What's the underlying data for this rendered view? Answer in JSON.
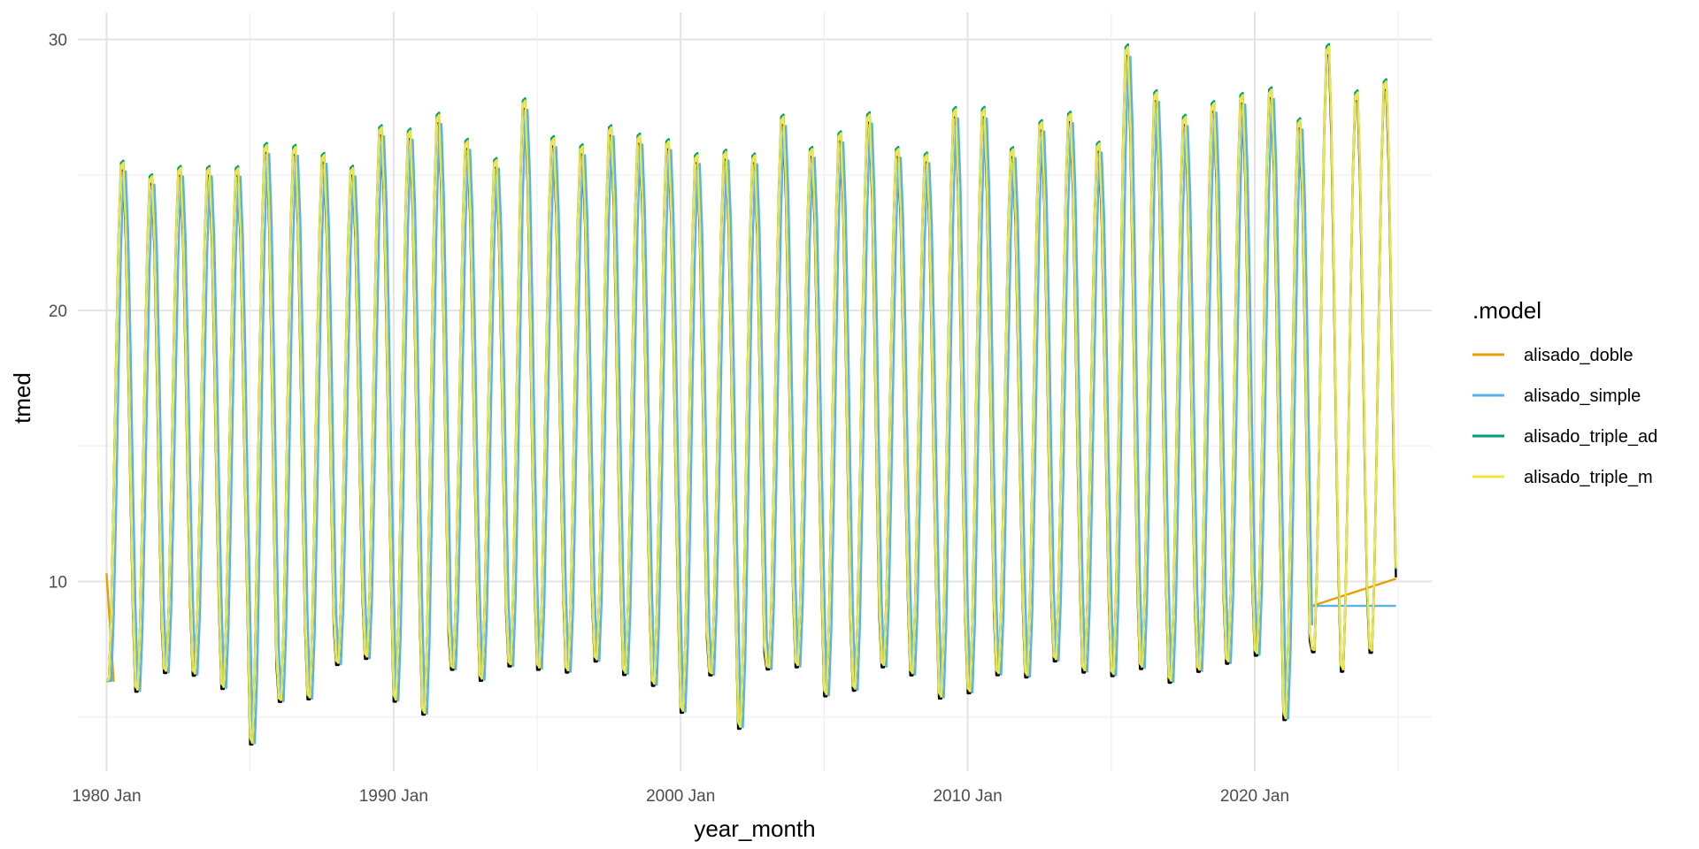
{
  "chart_data": {
    "type": "line",
    "title": "",
    "xlabel": "year_month",
    "ylabel": "tmed",
    "x_range": [
      "1979-01",
      "2026-03"
    ],
    "ylim": [
      3,
      31
    ],
    "x_ticks": [
      {
        "label": "1980 Jan",
        "value": "1980-01"
      },
      {
        "label": "1990 Jan",
        "value": "1990-01"
      },
      {
        "label": "2000 Jan",
        "value": "2000-01"
      },
      {
        "label": "2010 Jan",
        "value": "2010-01"
      },
      {
        "label": "2020 Jan",
        "value": "2020-01"
      }
    ],
    "y_ticks": [
      {
        "label": "10",
        "value": 10
      },
      {
        "label": "20",
        "value": 20
      },
      {
        "label": "30",
        "value": 30
      }
    ],
    "y_minor_ticks": [
      5,
      15,
      25
    ],
    "grid": true,
    "legend": {
      "title": ".model",
      "position": "right",
      "entries": [
        {
          "label": "alisado_doble",
          "color": "#E69F00"
        },
        {
          "label": "alisado_simple",
          "color": "#56B4E9"
        },
        {
          "label": "alisado_triple_ad",
          "color": "#009E73"
        },
        {
          "label": "alisado_triple_m",
          "color": "#F0E442"
        }
      ]
    },
    "observed": {
      "color": "#000000",
      "start": "1980-01",
      "end": "2024-12",
      "winter_lows": [
        6.0,
        5.6,
        6.3,
        6.2,
        5.7,
        3.6,
        5.2,
        5.3,
        6.6,
        6.8,
        5.2,
        4.7,
        6.4,
        6.0,
        6.5,
        6.4,
        6.3,
        6.7,
        6.2,
        5.8,
        4.8,
        6.2,
        4.2,
        6.4,
        6.5,
        5.4,
        5.6,
        6.5,
        6.2,
        5.3,
        5.5,
        6.2,
        6.1,
        6.7,
        6.3,
        6.1,
        6.4,
        5.9,
        6.3,
        6.6,
        6.9,
        4.5,
        7.0,
        6.3,
        7.0
      ],
      "summer_highs": [
        25.5,
        25.0,
        25.3,
        25.3,
        25.3,
        26.2,
        26.1,
        25.8,
        25.3,
        26.8,
        26.7,
        27.3,
        26.3,
        25.6,
        27.8,
        26.4,
        26.1,
        26.8,
        26.5,
        26.3,
        25.8,
        25.9,
        25.8,
        27.2,
        26.0,
        26.6,
        27.3,
        26.0,
        25.8,
        27.5,
        27.5,
        26.0,
        27.0,
        27.3,
        26.2,
        29.8,
        28.1,
        27.2,
        27.7,
        28.0,
        28.2,
        27.1,
        29.8,
        28.1,
        28.5
      ]
    },
    "series": [
      {
        "name": "alisado_doble",
        "color": "#E69F00",
        "kind": "flat",
        "x": [
          "1980-01",
          "1980-04"
        ],
        "y": [
          10.3,
          6.3
        ]
      },
      {
        "name": "alisado_doble",
        "color": "#E69F00",
        "kind": "flat",
        "x": [
          "2022-01",
          "2024-12"
        ],
        "y": [
          9.1,
          10.1
        ]
      },
      {
        "name": "alisado_simple",
        "color": "#56B4E9",
        "kind": "fit",
        "start": "1980-01",
        "end": "2022-01",
        "lag": 1
      },
      {
        "name": "alisado_simple",
        "color": "#56B4E9",
        "kind": "flat",
        "x": [
          "2022-01",
          "2024-12"
        ],
        "y": [
          9.1,
          9.1
        ]
      },
      {
        "name": "alisado_triple_ad",
        "color": "#009E73",
        "kind": "fit",
        "start": "1980-01",
        "end": "2024-12",
        "lag": 0,
        "smooth": 0.7
      },
      {
        "name": "alisado_triple_m",
        "color": "#F0E442",
        "kind": "fit",
        "start": "1980-01",
        "end": "2024-12",
        "lag": 0,
        "smooth": 0.55
      }
    ]
  }
}
